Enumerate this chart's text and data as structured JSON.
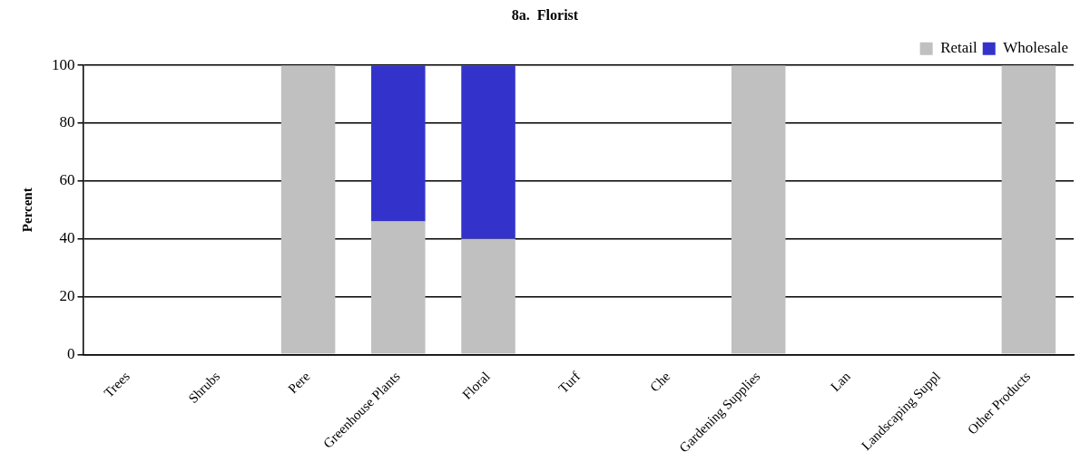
{
  "chart_data": {
    "type": "bar",
    "title": "8a.  Florist",
    "ylabel": "Percent",
    "stacked": true,
    "categories": [
      "Trees",
      "Shrubs",
      "Pere",
      "Greenhouse Plants",
      "Floral",
      "Turf",
      "Che",
      "Gardening Supplies",
      "Lan",
      "Landscaping Suppl",
      "Other Products"
    ],
    "series": [
      {
        "name": "Retail",
        "color": "#c0c0c0",
        "values": [
          0,
          0,
          100,
          46,
          40,
          0,
          0,
          100,
          0,
          0,
          100
        ]
      },
      {
        "name": "Wholesale",
        "color": "#3333cc",
        "values": [
          0,
          0,
          0,
          54,
          60,
          0,
          0,
          0,
          0,
          0,
          0
        ]
      }
    ],
    "ylim": [
      0,
      100
    ],
    "yticks": [
      0,
      20,
      40,
      60,
      80,
      100
    ],
    "grid": "y",
    "legend": "top right"
  }
}
